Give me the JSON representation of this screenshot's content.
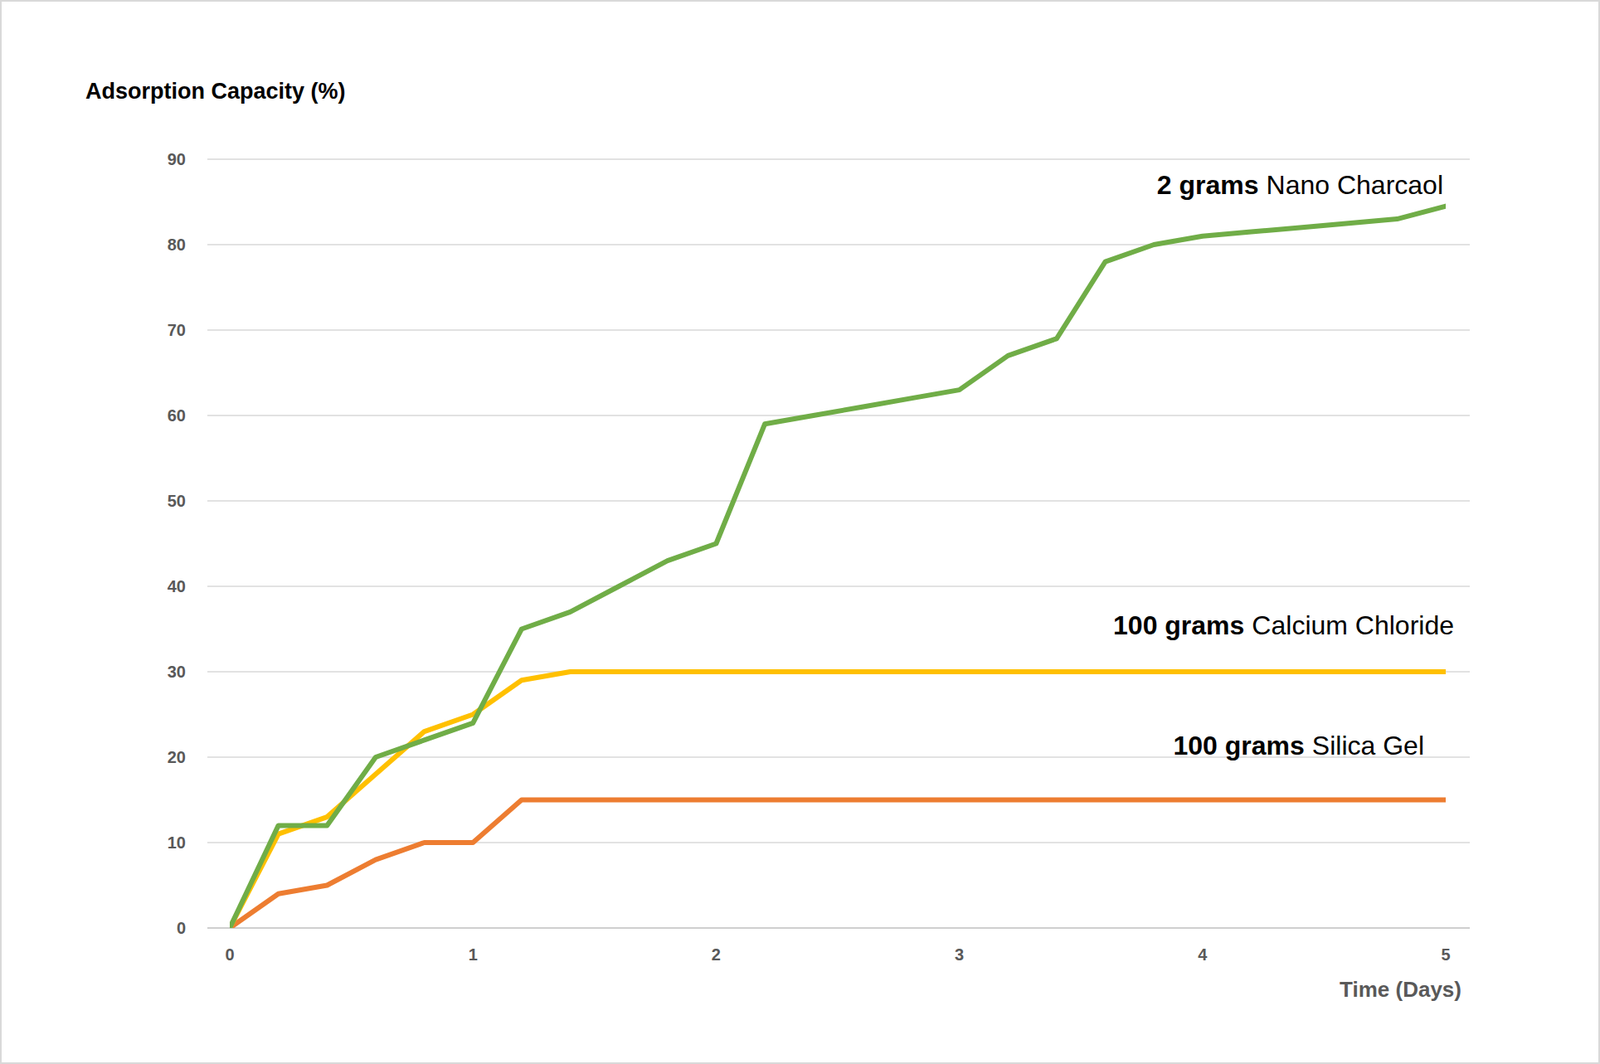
{
  "chart_data": {
    "type": "line",
    "y_label": "Adsorption Capacity (%)",
    "x_label": "Time (Days)",
    "x": [
      0,
      0.2,
      0.4,
      0.6,
      0.8,
      1.0,
      1.2,
      1.4,
      1.6,
      1.8,
      2.0,
      2.2,
      2.4,
      2.6,
      2.8,
      3.0,
      3.2,
      3.4,
      3.6,
      3.8,
      4.0,
      4.2,
      4.4,
      4.6,
      4.8,
      5.0
    ],
    "series": [
      {
        "name": "Nano Charcaol",
        "label_prefix": "2 grams",
        "color": "#70ad47",
        "values": [
          0,
          12,
          12,
          20,
          22,
          24,
          35,
          37,
          40,
          43,
          45,
          59,
          60,
          61,
          62,
          63,
          67,
          69,
          78,
          80,
          81,
          81.5,
          82,
          82.5,
          83,
          84.5
        ]
      },
      {
        "name": "Calcium Chloride",
        "label_prefix": "100 grams",
        "color": "#ffc000",
        "values": [
          0,
          11,
          13,
          18,
          23,
          25,
          29,
          30,
          30,
          30,
          30,
          30,
          30,
          30,
          30,
          30,
          30,
          30,
          30,
          30,
          30,
          30,
          30,
          30,
          30,
          30
        ]
      },
      {
        "name": "Silica Gel",
        "label_prefix": "100 grams",
        "color": "#ed7d31",
        "values": [
          0,
          4,
          5,
          8,
          10,
          10,
          15,
          15,
          15,
          15,
          15,
          15,
          15,
          15,
          15,
          15,
          15,
          15,
          15,
          15,
          15,
          15,
          15,
          15,
          15,
          15
        ]
      }
    ],
    "xlim": [
      0,
      5
    ],
    "xticks": [
      0,
      1,
      2,
      3,
      4,
      5
    ],
    "ylim": [
      0,
      90
    ],
    "yticks": [
      0,
      10,
      20,
      30,
      40,
      50,
      60,
      70,
      80,
      90
    ],
    "grid": true
  }
}
